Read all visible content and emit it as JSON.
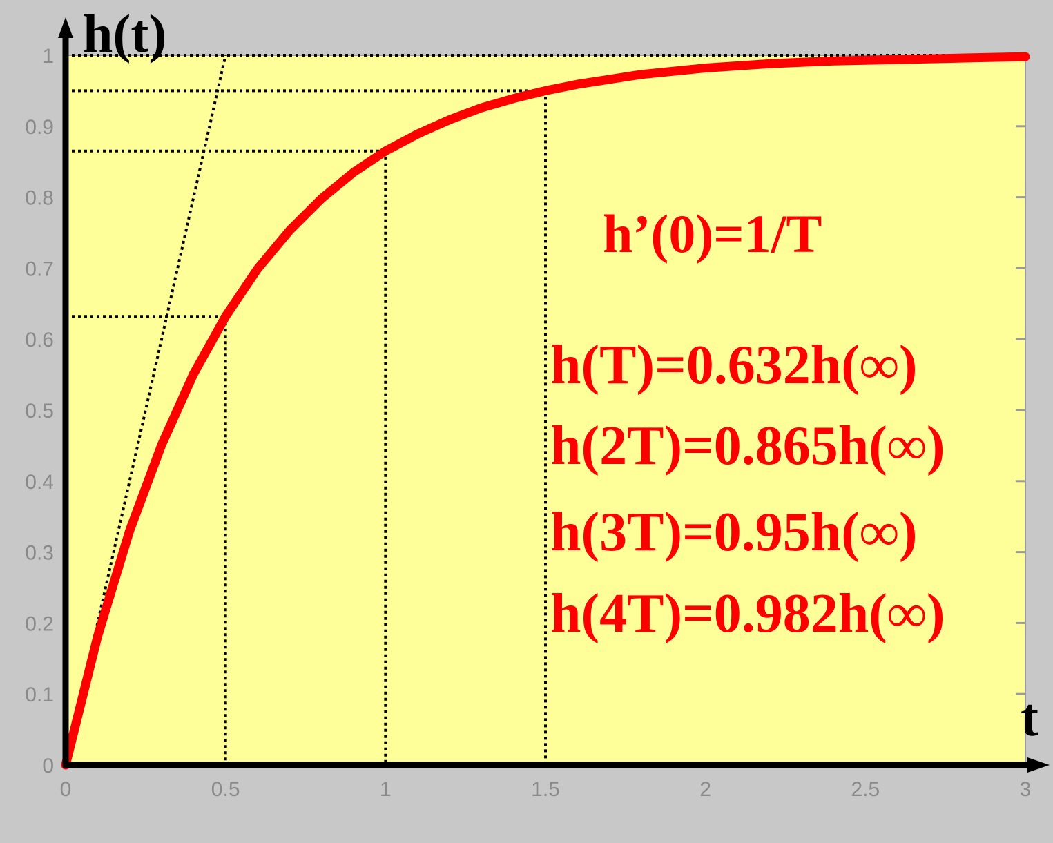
{
  "chart_data": {
    "type": "line",
    "y_axis_label": "h(t)",
    "x_axis_label": "t",
    "xlim": [
      0,
      3
    ],
    "ylim": [
      0,
      1
    ],
    "x_ticks": [
      0,
      0.5,
      1,
      1.5,
      2,
      2.5,
      3
    ],
    "x_tick_labels": [
      "0",
      "0.5",
      "1",
      "1.5",
      "2",
      "2.5",
      "3"
    ],
    "y_ticks": [
      0,
      0.1,
      0.2,
      0.3,
      0.4,
      0.5,
      0.6,
      0.7,
      0.8,
      0.9,
      1
    ],
    "y_tick_labels": [
      "0",
      "0.1",
      "0.2",
      "0.3",
      "0.4",
      "0.5",
      "0.6",
      "0.7",
      "0.8",
      "0.9",
      "1"
    ],
    "time_constant": 0.5,
    "series": [
      {
        "color": "#ff0000",
        "x": [
          0,
          0.1,
          0.2,
          0.3,
          0.4,
          0.5,
          0.6,
          0.7,
          0.8,
          0.9,
          1.0,
          1.1,
          1.2,
          1.3,
          1.4,
          1.5,
          1.6,
          1.8,
          2.0,
          2.2,
          2.4,
          2.6,
          2.8,
          3.0
        ],
        "y": [
          0,
          0.181,
          0.33,
          0.451,
          0.551,
          0.632,
          0.699,
          0.753,
          0.798,
          0.835,
          0.865,
          0.889,
          0.909,
          0.926,
          0.939,
          0.95,
          0.959,
          0.973,
          0.982,
          0.988,
          0.992,
          0.994,
          0.996,
          0.998
        ]
      }
    ],
    "reference_lines": {
      "tangent_from_origin": {
        "x": [
          0,
          0.5
        ],
        "y": [
          0,
          1
        ]
      },
      "marked_points": [
        {
          "x": 0.5,
          "y": 0.632
        },
        {
          "x": 1.0,
          "y": 0.865
        },
        {
          "x": 1.5,
          "y": 0.95
        }
      ]
    },
    "annotations": [
      "h’(0)=1/T",
      "h(T)=0.632h(∞)",
      "h(2T)=0.865h(∞)",
      "h(3T)=0.95h(∞)",
      "h(4T)=0.982h(∞)"
    ],
    "grid": false,
    "background_color": "#ffff99",
    "curve_color": "#ff0000"
  }
}
